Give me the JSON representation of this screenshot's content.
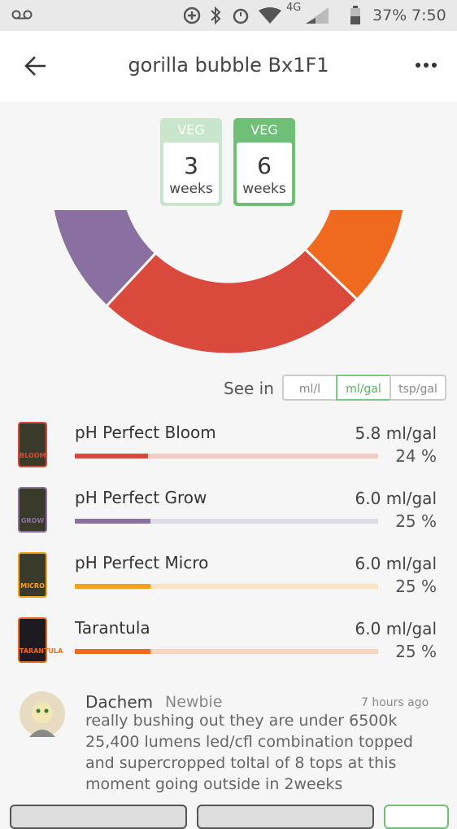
{
  "status_bar": {
    "network": "4G",
    "battery": "37%",
    "time": "7:50"
  },
  "header": {
    "title": "gorilla bubble Bx1F1"
  },
  "stages": [
    {
      "label": "VEG",
      "number": 3,
      "unit": "weeks"
    },
    {
      "label": "VEG",
      "number": 6,
      "unit": "weeks"
    }
  ],
  "units": {
    "label": "See in",
    "options": [
      "ml/l",
      "ml/gal",
      "tsp/gal"
    ]
  },
  "products": [
    {
      "name": "pH Perfect Bloom",
      "icon_label": "BLOOM",
      "amount": "5.8 ml/gal",
      "percent": 24,
      "percent_label": "24 %",
      "color": "#d94a3c",
      "track_color": "#f2cbc4"
    },
    {
      "name": "pH Perfect Grow",
      "icon_label": "GROW",
      "amount": "6.0 ml/gal",
      "percent": 25,
      "percent_label": "25 %",
      "color": "#8a70a0",
      "track_color": "#dddbe3"
    },
    {
      "name": "pH Perfect Micro",
      "icon_label": "MICRO",
      "amount": "6.0 ml/gal",
      "percent": 25,
      "percent_label": "25 %",
      "color": "#f7a21c",
      "track_color": "#fbe2c1"
    },
    {
      "name": "Tarantula",
      "icon_label": "TARANTULA",
      "amount": "6.0 ml/gal",
      "percent": 25,
      "percent_label": "25 %",
      "color": "#ef6a1e",
      "track_color": "#f9d4bf"
    }
  ],
  "comment": {
    "author": "Dachem",
    "rank": "Newbie",
    "time": "7 hours ago",
    "lines": [
      "really bushing out they are under 6500k",
      "25,400 lumens led/cfl combination topped",
      "and supercropped  toltal of 8 tops at this",
      "moment going outside in 2weeks"
    ]
  }
}
